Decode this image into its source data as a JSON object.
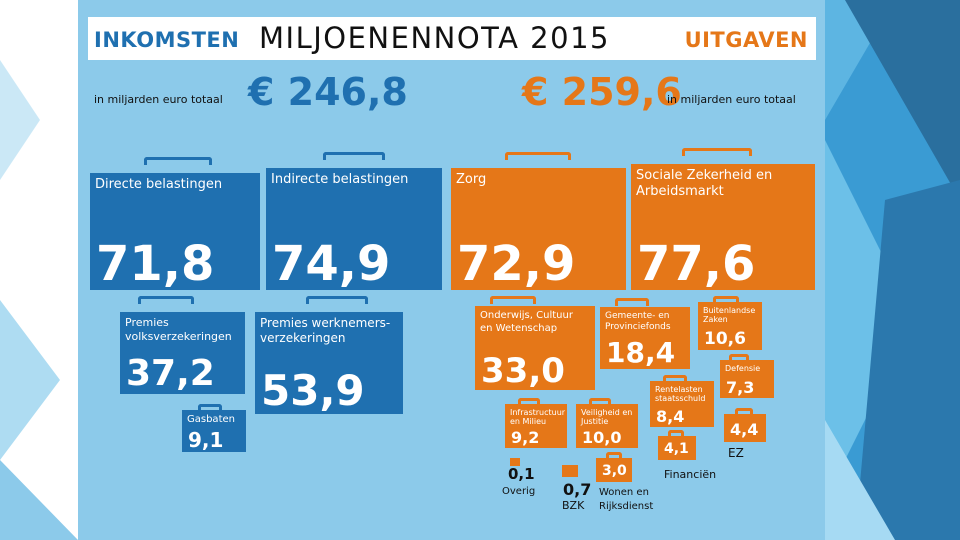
{
  "title": {
    "left": "INKOMSTEN",
    "main": "MILJOENENNOTA 2015",
    "right": "UITGAVEN"
  },
  "income": {
    "total_label": "in miljarden euro totaal",
    "total": "€ 246,8",
    "items": [
      {
        "name": "Directe belastingen",
        "value": "71,8"
      },
      {
        "name": "Indirecte belastingen",
        "value": "74,9"
      },
      {
        "name": "Premies volksverzekeringen",
        "value": "37,2"
      },
      {
        "name": "Premies werknemers- verzekeringen",
        "value": "53,9"
      },
      {
        "name": "Gasbaten",
        "value": "9,1"
      }
    ]
  },
  "expenses": {
    "total_label": "in miljarden euro totaal",
    "total": "€ 259,6",
    "items": [
      {
        "name": "Zorg",
        "value": "72,9"
      },
      {
        "name": "Sociale Zekerheid en Arbeidsmarkt",
        "value": "77,6"
      },
      {
        "name": "Onderwijs, Cultuur en Wetenschap",
        "value": "33,0"
      },
      {
        "name": "Gemeente- en Provinciefonds",
        "value": "18,4"
      },
      {
        "name": "Buitenlandse Zaken",
        "value": "10,6"
      },
      {
        "name": "Defensie",
        "value": "7,3"
      },
      {
        "name": "Rentelasten staatsschuld",
        "value": "8,4"
      },
      {
        "name": "Infrastructuur en Milieu",
        "value": "9,2"
      },
      {
        "name": "Veiligheid en Justitie",
        "value": "10,0"
      },
      {
        "name": "EZ",
        "value": "4,4"
      },
      {
        "name": "Financiën",
        "value": "4,1"
      },
      {
        "name": "Wonen en Rijksdienst",
        "value": "3,0"
      },
      {
        "name": "BZK",
        "value": "0,7"
      },
      {
        "name": "Overig",
        "value": "0,1"
      }
    ]
  },
  "colors": {
    "income": "#1f70b0",
    "expenses": "#e57718",
    "background": "#8ccaea"
  }
}
